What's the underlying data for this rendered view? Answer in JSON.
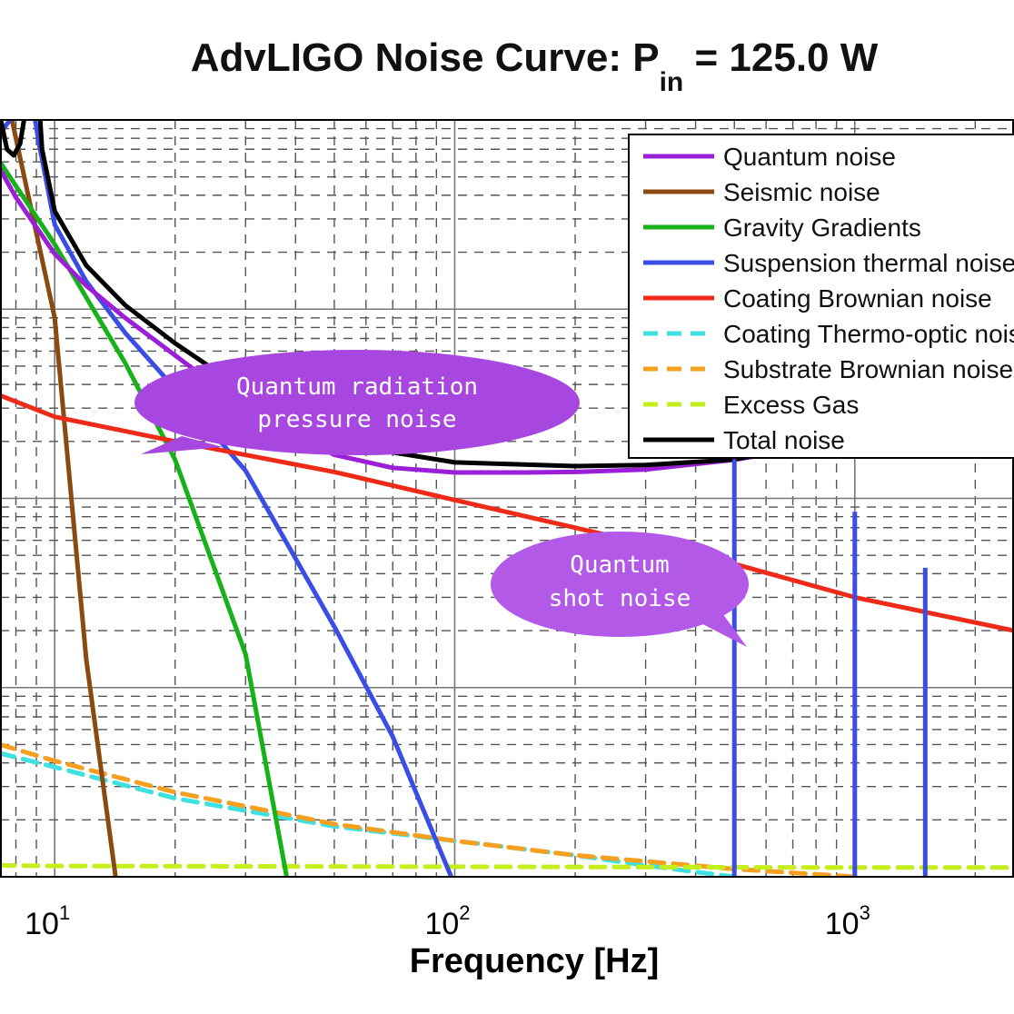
{
  "chart_data": {
    "type": "line",
    "title": "AdvLIGO Noise Curve: P",
    "title_subscript": "in",
    "title_suffix": " = 125.0 W",
    "xlabel": "Frequency [Hz]",
    "ylabel": "",
    "x_scale": "log",
    "y_scale": "log",
    "xlim": [
      7.3,
      2500
    ],
    "ylim": [
      1e-25,
      1e-21
    ],
    "x_ticks": [
      {
        "base": "10",
        "exp": "1"
      },
      {
        "base": "10",
        "exp": "2"
      },
      {
        "base": "10",
        "exp": "3"
      }
    ],
    "grid": true,
    "legend_position": "top-right",
    "series": [
      {
        "name": "Quantum noise",
        "color": "#9b1fd6",
        "style": "solid",
        "x": [
          7.3,
          8,
          10,
          12,
          15,
          20,
          30,
          50,
          70,
          100,
          150,
          200,
          300,
          500,
          700,
          1000,
          1500,
          2000,
          2500
        ],
        "y": [
          5.5e-22,
          3.9e-22,
          1.96e-22,
          1.33e-22,
          9e-23,
          5.7e-23,
          3e-23,
          1.7e-23,
          1.45e-23,
          1.37e-23,
          1.37e-23,
          1.38e-23,
          1.42e-23,
          1.6e-23,
          1.8e-23,
          2.2e-23,
          3.1e-23,
          4e-23,
          5e-23
        ]
      },
      {
        "name": "Seismic noise",
        "color": "#8b4a10",
        "style": "solid",
        "x": [
          7.3,
          8,
          10,
          12,
          14.2
        ],
        "y": [
          2e-21,
          8e-22,
          9e-23,
          1.4e-24,
          1e-25
        ]
      },
      {
        "name": "Gravity Gradients",
        "color": "#17b21a",
        "style": "solid",
        "x": [
          7.3,
          10,
          15,
          20,
          30,
          38
        ],
        "y": [
          6e-22,
          2.2e-22,
          5.2e-23,
          1.6e-23,
          1.5e-24,
          1e-25
        ]
      },
      {
        "name": "Suspension thermal noise",
        "color": "#3a4ee6",
        "style": "solid",
        "x": [
          7.3,
          8,
          8.6,
          9.2,
          10,
          12,
          15,
          20,
          30,
          50,
          70,
          98
        ],
        "y": [
          8.5e-22,
          1.1e-21,
          1.6e-21,
          7e-22,
          2.8e-22,
          1.4e-22,
          7.5e-23,
          3.8e-23,
          1.4e-23,
          2.1e-24,
          5.5e-25,
          1e-25
        ]
      },
      {
        "name": "Coating Brownian noise",
        "color": "#ee2a18",
        "style": "solid",
        "x": [
          7.3,
          10,
          20,
          50,
          100,
          200,
          500,
          1000,
          2500
        ],
        "y": [
          3.5e-23,
          2.7e-23,
          2e-23,
          1.38e-23,
          9.8e-24,
          7e-24,
          4.5e-24,
          3e-24,
          2e-24
        ]
      },
      {
        "name": "Coating Thermo-optic noise",
        "color": "#3ee0e0",
        "style": "dashed",
        "x": [
          7.3,
          10,
          20,
          50,
          100,
          200,
          300,
          400,
          500
        ],
        "y": [
          4.5e-25,
          3.8e-25,
          2.6e-25,
          1.85e-25,
          1.55e-25,
          1.3e-25,
          1.15e-25,
          1.06e-25,
          1e-25
        ]
      },
      {
        "name": "Substrate Brownian noise",
        "color": "#f5a020",
        "style": "dashed",
        "x": [
          7.3,
          10,
          20,
          50,
          100,
          200,
          500,
          1000
        ],
        "y": [
          5e-25,
          4.1e-25,
          2.8e-25,
          1.9e-25,
          1.55e-25,
          1.3e-25,
          1.1e-25,
          1e-25
        ]
      },
      {
        "name": "Excess Gas",
        "color": "#c4ee1c",
        "style": "dashed",
        "x": [
          7.3,
          10,
          100,
          1000,
          2500
        ],
        "y": [
          1.15e-25,
          1.14e-25,
          1.13e-25,
          1.12e-25,
          1.12e-25
        ]
      },
      {
        "name": "Total noise",
        "color": "#000000",
        "style": "solid",
        "x": [
          7.3,
          7.6,
          7.9,
          8.2,
          8.5,
          8.7,
          8.9,
          9.3,
          10,
          12,
          15,
          20,
          30,
          50,
          70,
          100,
          200,
          300,
          490,
          500,
          510,
          700,
          1000,
          1500,
          2000,
          2500
        ],
        "y": [
          1.05e-21,
          7e-22,
          6.5e-22,
          7.5e-22,
          1.2e-21,
          3e-21,
          3e-21,
          7e-22,
          3.3e-22,
          1.7e-22,
          1.05e-22,
          6.6e-23,
          3.7e-23,
          2.2e-23,
          1.75e-23,
          1.55e-23,
          1.48e-23,
          1.5e-23,
          1.6e-23,
          2.3e-22,
          1.62e-23,
          1.85e-23,
          2.3e-23,
          3.3e-23,
          4.3e-23,
          5.5e-23
        ]
      }
    ],
    "spikes": [
      {
        "x": 500,
        "y_top": 1.6e-23,
        "color": "#3a4ee6"
      },
      {
        "x": 1000,
        "y_top": 8.5e-24,
        "color": "#3a4ee6"
      },
      {
        "x": 1500,
        "y_top": 4.3e-24,
        "color": "#3a4ee6"
      }
    ],
    "annotations": [
      {
        "lines": [
          "Quantum radiation",
          "pressure noise"
        ],
        "color": "#a847e0"
      },
      {
        "lines": [
          "Quantum",
          "shot noise"
        ],
        "color": "#b259e8"
      }
    ]
  }
}
